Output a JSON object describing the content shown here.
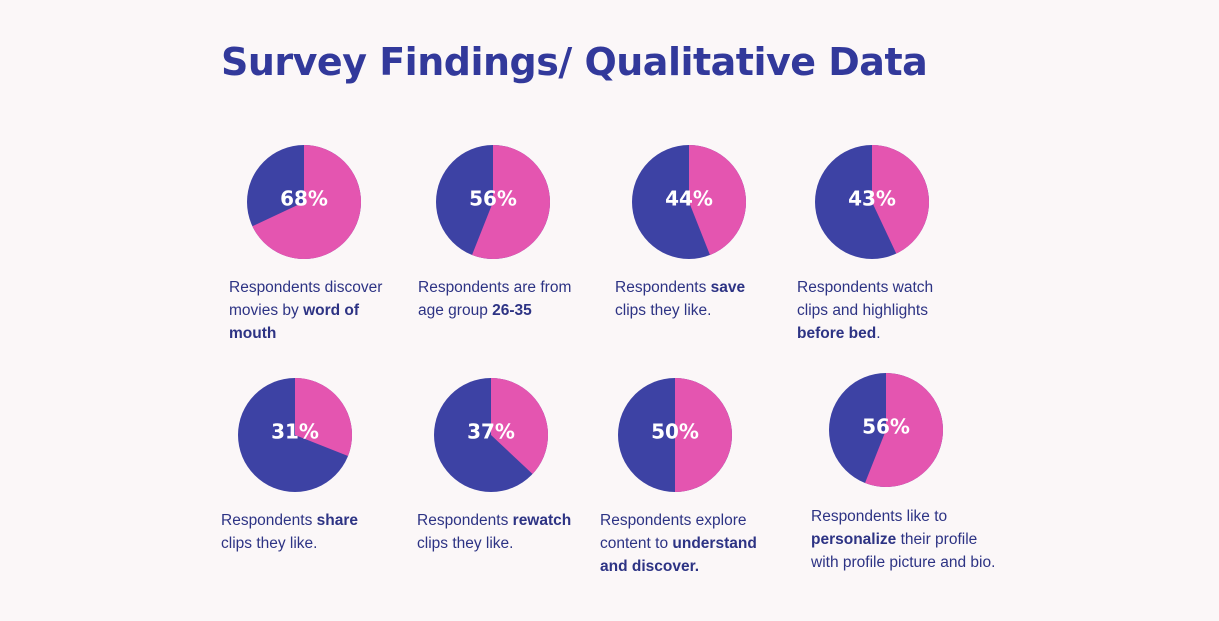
{
  "title": "Survey Findings/ Qualitative Data",
  "colors": {
    "primary": "#3d42a4",
    "secondary": "#e455b0",
    "text": "#2d3384",
    "title": "#32399b"
  },
  "chart_data": [
    {
      "type": "pie",
      "label": "68%",
      "value": 68,
      "caption": [
        {
          "t": "Respondents discover movies by "
        },
        {
          "t": "word of mouth",
          "b": true
        }
      ]
    },
    {
      "type": "pie",
      "label": "56%",
      "value": 56,
      "caption": [
        {
          "t": "Respondents are from age group "
        },
        {
          "t": "26-35",
          "b": true
        }
      ]
    },
    {
      "type": "pie",
      "label": "44%",
      "value": 44,
      "caption": [
        {
          "t": "Respondents "
        },
        {
          "t": "save",
          "b": true
        },
        {
          "t": " clips they like."
        }
      ]
    },
    {
      "type": "pie",
      "label": "43%",
      "value": 43,
      "caption": [
        {
          "t": "Respondents watch clips and highlights "
        },
        {
          "t": "before bed",
          "b": true
        },
        {
          "t": "."
        }
      ]
    },
    {
      "type": "pie",
      "label": "31%",
      "value": 31,
      "caption": [
        {
          "t": "Respondents "
        },
        {
          "t": "share",
          "b": true
        },
        {
          "t": " clips they like."
        }
      ]
    },
    {
      "type": "pie",
      "label": "37%",
      "value": 37,
      "caption": [
        {
          "t": "Respondents "
        },
        {
          "t": "rewatch",
          "b": true
        },
        {
          "t": " clips they like."
        }
      ]
    },
    {
      "type": "pie",
      "label": "50%",
      "value": 50,
      "caption": [
        {
          "t": "Respondents explore content to "
        },
        {
          "t": "understand and discover.",
          "b": true
        }
      ]
    },
    {
      "type": "pie",
      "label": "56%",
      "value": 56,
      "caption": [
        {
          "t": "Respondents like to "
        },
        {
          "t": "personalize",
          "b": true
        },
        {
          "t": " their profile with profile picture and bio."
        }
      ]
    }
  ]
}
